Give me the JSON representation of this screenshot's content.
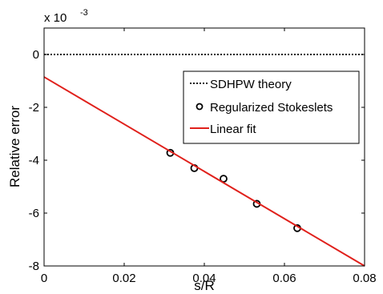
{
  "chart_data": {
    "type": "scatter",
    "xlabel": "s/R",
    "ylabel": "Relative error",
    "y_scale_label": "x 10",
    "y_scale_exponent": "-3",
    "xlim": [
      0,
      0.08
    ],
    "ylim": [
      -8,
      1
    ],
    "x_ticks": [
      0,
      0.02,
      0.04,
      0.06,
      0.08
    ],
    "x_tick_labels": [
      "0",
      "0.02",
      "0.04",
      "0.06",
      "0.08"
    ],
    "y_ticks": [
      -8,
      -6,
      -4,
      -2,
      0
    ],
    "y_tick_labels": [
      "-8",
      "-6",
      "-4",
      "-2",
      "0"
    ],
    "grid": false,
    "legend_position": "right",
    "series": [
      {
        "name": "SDHPW theory",
        "kind": "line",
        "style": "dotted",
        "color": "#000000",
        "x": [
          0,
          0.08
        ],
        "y": [
          0,
          0
        ]
      },
      {
        "name": "Regularized Stokeslets",
        "kind": "markers",
        "marker": "open-circle",
        "color": "#000000",
        "x": [
          0.0315,
          0.0375,
          0.0448,
          0.0531,
          0.0632
        ],
        "y": [
          -3.72,
          -4.3,
          -4.7,
          -5.65,
          -6.57
        ]
      },
      {
        "name": "Linear fit",
        "kind": "line",
        "style": "solid",
        "color": "#e0201b",
        "x": [
          0,
          0.08
        ],
        "y": [
          -0.85,
          -8.0
        ]
      }
    ]
  }
}
